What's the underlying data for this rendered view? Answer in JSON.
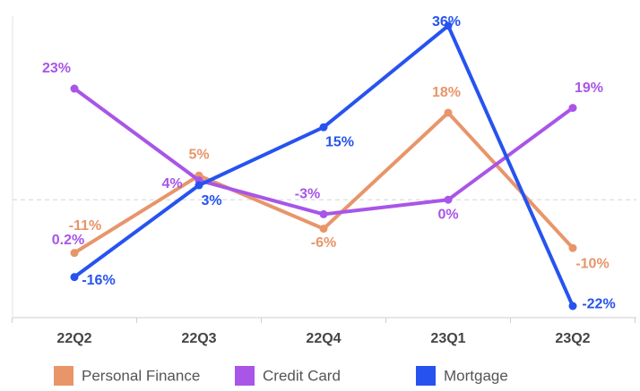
{
  "chart_data": {
    "type": "line",
    "categories": [
      "22Q2",
      "22Q3",
      "22Q4",
      "23Q1",
      "23Q2"
    ],
    "series": [
      {
        "name": "Personal Finance",
        "color": "#e8956a",
        "values": [
          -11,
          5,
          -6,
          18,
          -10
        ],
        "value_labels": [
          "-11%",
          "5%",
          "-6%",
          "18%",
          "-10%"
        ]
      },
      {
        "name": "Credit Card",
        "color": "#a855e8",
        "values": [
          23,
          4,
          -3,
          0,
          19
        ],
        "value_labels": [
          "23%",
          "4%",
          "-3%",
          "0%",
          "19%"
        ]
      },
      {
        "name": "Mortgage",
        "color": "#2653f0",
        "values": [
          -16,
          3,
          15,
          36,
          -22
        ],
        "value_labels": [
          "-16%",
          "3%",
          "15%",
          "36%",
          "-22%"
        ]
      }
    ],
    "annotations": [
      "0.2%"
    ],
    "ylim": [
      -24.4,
      38
    ],
    "yticks": [
      0
    ],
    "grid": true,
    "legend": "bottom"
  }
}
